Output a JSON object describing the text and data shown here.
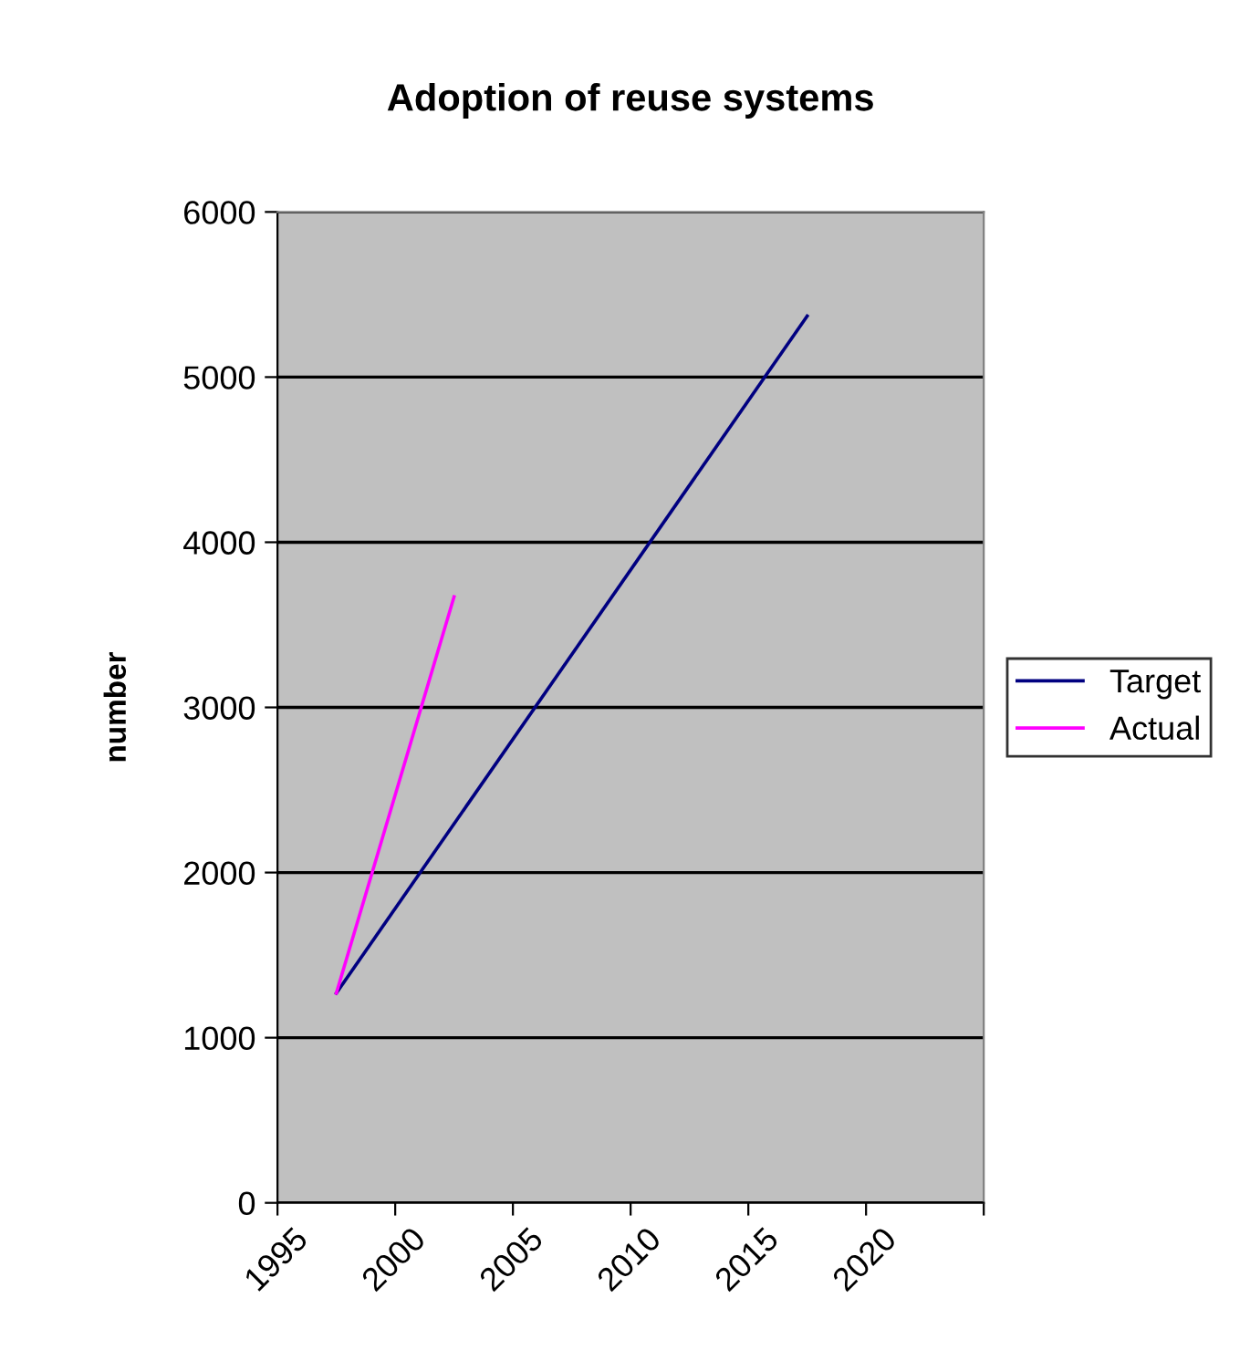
{
  "chart_data": {
    "type": "line",
    "title": "Adoption of reuse systems",
    "ylabel": "number",
    "series": [
      {
        "name": "Target",
        "color": "#000080",
        "x": [
          1997.5,
          2017.5
        ],
        "values": [
          1270,
          5370
        ]
      },
      {
        "name": "Actual",
        "color": "#ff00ff",
        "x": [
          1997.5,
          2002.5
        ],
        "values": [
          1270,
          3670
        ]
      }
    ],
    "xlim": [
      1995,
      2025
    ],
    "xticks": [
      1995,
      2000,
      2005,
      2010,
      2015,
      2020,
      {
        "value": 2025,
        "label": null
      }
    ],
    "ylim": [
      0,
      6000
    ],
    "yticks": [
      0,
      1000,
      2000,
      3000,
      4000,
      5000,
      6000
    ],
    "grid": "y",
    "legend": "right",
    "marker": "none",
    "line_style": "solid"
  }
}
